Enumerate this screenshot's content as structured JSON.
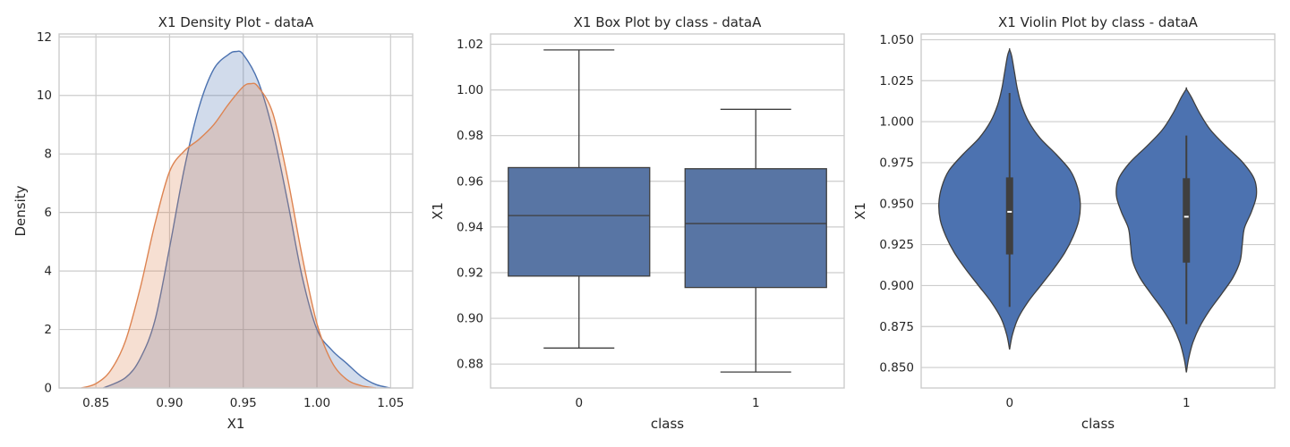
{
  "chart_data": [
    {
      "type": "density",
      "title": "X1 Density Plot - dataA",
      "xlabel": "X1",
      "ylabel": "Density",
      "xlim": [
        0.825,
        1.065
      ],
      "ylim": [
        0,
        12.1
      ],
      "xticks": [
        "0.85",
        "0.90",
        "0.95",
        "1.00",
        "1.05"
      ],
      "xtick_values": [
        0.85,
        0.9,
        0.95,
        1.0,
        1.05
      ],
      "yticks": [
        "0",
        "2",
        "4",
        "6",
        "8",
        "10",
        "12"
      ],
      "ytick_values": [
        0,
        2,
        4,
        6,
        8,
        10,
        12
      ],
      "grid": true,
      "series": [
        {
          "color": "#4c72b0",
          "x": [
            0.855,
            0.87,
            0.88,
            0.89,
            0.9,
            0.91,
            0.92,
            0.93,
            0.94,
            0.945,
            0.95,
            0.96,
            0.97,
            0.98,
            0.99,
            1.0,
            1.01,
            1.02,
            1.03,
            1.04,
            1.05
          ],
          "y": [
            0,
            0.35,
            1.0,
            2.3,
            4.8,
            7.5,
            9.6,
            10.9,
            11.4,
            11.5,
            11.4,
            10.5,
            8.8,
            6.4,
            3.8,
            2.0,
            1.3,
            0.85,
            0.4,
            0.12,
            0
          ]
        },
        {
          "color": "#dd8452",
          "x": [
            0.84,
            0.85,
            0.86,
            0.87,
            0.88,
            0.89,
            0.9,
            0.91,
            0.92,
            0.93,
            0.94,
            0.95,
            0.955,
            0.96,
            0.97,
            0.98,
            0.99,
            1.0,
            1.01,
            1.02,
            1.03,
            1.04
          ],
          "y": [
            0,
            0.15,
            0.6,
            1.6,
            3.4,
            5.6,
            7.4,
            8.1,
            8.5,
            9.0,
            9.7,
            10.3,
            10.4,
            10.3,
            9.4,
            7.2,
            4.5,
            2.2,
            0.9,
            0.3,
            0.08,
            0
          ]
        }
      ]
    },
    {
      "type": "box",
      "title": "X1 Box Plot by class - dataA",
      "xlabel": "class",
      "ylabel": "X1",
      "categories": [
        "0",
        "1"
      ],
      "ylim": [
        0.8695,
        1.0245
      ],
      "yticks": [
        "0.88",
        "0.90",
        "0.92",
        "0.94",
        "0.96",
        "0.98",
        "1.00",
        "1.02"
      ],
      "ytick_values": [
        0.88,
        0.9,
        0.92,
        0.94,
        0.96,
        0.98,
        1.0,
        1.02
      ],
      "color": "#5875a4",
      "grid": true,
      "boxes": [
        {
          "category": "0",
          "min": 0.887,
          "q1": 0.9185,
          "median": 0.945,
          "q3": 0.966,
          "max": 1.0175
        },
        {
          "category": "1",
          "min": 0.8765,
          "q1": 0.9135,
          "median": 0.9415,
          "q3": 0.9655,
          "max": 0.9915
        }
      ]
    },
    {
      "type": "violin",
      "title": "X1 Violin Plot by class - dataA",
      "xlabel": "class",
      "ylabel": "X1",
      "categories": [
        "0",
        "1"
      ],
      "ylim": [
        0.8375,
        1.0535
      ],
      "yticks": [
        "0.850",
        "0.875",
        "0.900",
        "0.925",
        "0.950",
        "0.975",
        "1.000",
        "1.025",
        "1.050"
      ],
      "ytick_values": [
        0.85,
        0.875,
        0.9,
        0.925,
        0.95,
        0.975,
        1.0,
        1.025,
        1.05
      ],
      "color": "#4c72b0",
      "grid": true,
      "violins": [
        {
          "category": "0",
          "y": [
            0.861,
            0.87,
            0.88,
            0.89,
            0.9,
            0.91,
            0.92,
            0.93,
            0.94,
            0.95,
            0.96,
            0.97,
            0.98,
            0.99,
            1.0,
            1.01,
            1.02,
            1.03,
            1.04,
            1.044
          ],
          "half_width": [
            0,
            0.04,
            0.12,
            0.26,
            0.44,
            0.62,
            0.78,
            0.9,
            0.98,
            1.0,
            0.96,
            0.86,
            0.66,
            0.43,
            0.27,
            0.17,
            0.11,
            0.07,
            0.03,
            0
          ],
          "min": 0.887,
          "q1": 0.919,
          "median": 0.945,
          "q3": 0.966,
          "max": 1.0175
        },
        {
          "category": "1",
          "y": [
            0.847,
            0.855,
            0.865,
            0.875,
            0.885,
            0.895,
            0.905,
            0.915,
            0.925,
            0.935,
            0.945,
            0.955,
            0.965,
            0.975,
            0.985,
            0.995,
            1.005,
            1.015,
            1.02
          ],
          "half_width": [
            0,
            0.03,
            0.09,
            0.19,
            0.33,
            0.5,
            0.66,
            0.76,
            0.79,
            0.82,
            0.92,
            0.99,
            0.96,
            0.8,
            0.56,
            0.34,
            0.19,
            0.07,
            0
          ],
          "min": 0.8765,
          "q1": 0.914,
          "median": 0.942,
          "q3": 0.9655,
          "max": 0.9915
        }
      ]
    }
  ]
}
